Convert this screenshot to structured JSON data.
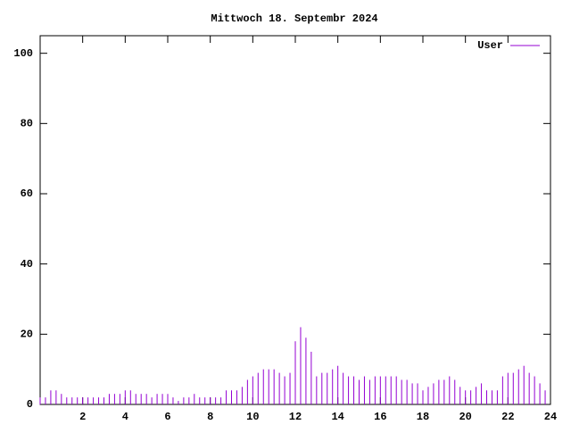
{
  "chart_data": {
    "type": "impulse",
    "title": "Mittwoch 18. Septembr 2024",
    "series": [
      {
        "name": "User",
        "color": "#9400d3",
        "values": [
          2,
          2,
          4,
          4,
          3,
          2,
          2,
          2,
          2,
          2,
          2,
          2,
          2,
          3,
          3,
          3,
          4,
          4,
          3,
          3,
          3,
          2,
          3,
          3,
          3,
          2,
          1,
          2,
          2,
          3,
          2,
          2,
          2,
          2,
          2,
          4,
          4,
          4,
          5,
          7,
          8,
          9,
          10,
          10,
          10,
          9,
          8,
          9,
          18,
          22,
          19,
          15,
          8,
          9,
          9,
          10,
          11,
          9,
          8,
          8,
          7,
          8,
          7,
          8,
          8,
          8,
          8,
          8,
          7,
          7,
          6,
          6,
          4,
          5,
          6,
          7,
          7,
          8,
          7,
          5,
          4,
          4,
          5,
          6,
          4,
          4,
          4,
          8,
          9,
          9,
          10,
          11,
          9,
          8,
          6,
          4
        ]
      }
    ],
    "x": [
      0,
      0.25,
      0.5,
      0.75,
      1,
      1.25,
      1.5,
      1.75,
      2,
      2.25,
      2.5,
      2.75,
      3,
      3.25,
      3.5,
      3.75,
      4,
      4.25,
      4.5,
      4.75,
      5,
      5.25,
      5.5,
      5.75,
      6,
      6.25,
      6.5,
      6.75,
      7,
      7.25,
      7.5,
      7.75,
      8,
      8.25,
      8.5,
      8.75,
      9,
      9.25,
      9.5,
      9.75,
      10,
      10.25,
      10.5,
      10.75,
      11,
      11.25,
      11.5,
      11.75,
      12,
      12.25,
      12.5,
      12.75,
      13,
      13.25,
      13.5,
      13.75,
      14,
      14.25,
      14.5,
      14.75,
      15,
      15.25,
      15.5,
      15.75,
      16,
      16.25,
      16.5,
      16.75,
      17,
      17.25,
      17.5,
      17.75,
      18,
      18.25,
      18.5,
      18.75,
      19,
      19.25,
      19.5,
      19.75,
      20,
      20.25,
      20.5,
      20.75,
      21,
      21.25,
      21.5,
      21.75,
      22,
      22.25,
      22.5,
      22.75,
      23,
      23.25,
      23.5,
      23.75
    ],
    "xlim": [
      0,
      24
    ],
    "xticks": [
      2,
      4,
      6,
      8,
      10,
      12,
      14,
      16,
      18,
      20,
      22,
      24
    ],
    "ylim": [
      0,
      105
    ],
    "yticks": [
      0,
      20,
      40,
      60,
      80,
      100
    ],
    "legend": "top-right"
  }
}
